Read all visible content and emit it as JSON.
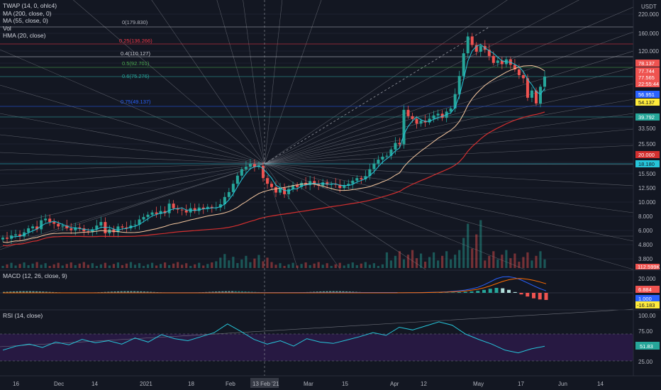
{
  "legend": {
    "items": [
      "TWAP (14, 0, ohlc4)",
      "MA (200, close, 0)",
      "MA (55, close, 0)",
      "Vol",
      "HMA (20, close)"
    ],
    "macd_title": "MACD (12, 26, close, 9)",
    "rsi_title": "RSI (14, close)"
  },
  "price_axis": {
    "unit": "USDT",
    "ticks": [
      "220.000",
      "160.000",
      "120.000",
      "78.137",
      "77.744",
      "77.565",
      "22:55:44",
      "56.951",
      "54.137",
      "39.792",
      "33.500",
      "25.500",
      "20.000",
      "18.180",
      "15.500",
      "12.500",
      "10.000",
      "8.000",
      "6.000",
      "4.800",
      "3.800",
      "112.599K"
    ]
  },
  "fib_levels": [
    {
      "label": "0(179.830)",
      "color": "#b2b5be"
    },
    {
      "label": "0.25(136.266)",
      "color": "#f23645"
    },
    {
      "label": "0.4(110.127)",
      "color": "#d1d4dc"
    },
    {
      "label": "0.5(92.701)",
      "color": "#4caf50"
    },
    {
      "label": "0.6(75.276)",
      "color": "#26a69a"
    },
    {
      "label": "0.75(49.137)",
      "color": "#2962ff"
    }
  ],
  "macd_axis": {
    "ticks": [
      "20.000",
      "6.884",
      "1.000",
      "-16.183"
    ]
  },
  "rsi_axis": {
    "ticks": [
      "100.00",
      "75.00",
      "51.83",
      "25.00"
    ]
  },
  "time_axis": {
    "ticks": [
      "16",
      "Dec",
      "14",
      "2021",
      "18",
      "Feb",
      "13 Feb '21",
      "Mar",
      "15",
      "Apr",
      "12",
      "May",
      "17",
      "Jun",
      "14"
    ]
  },
  "colors": {
    "up": "#26a69a",
    "down": "#ef5350",
    "ma200": "#d32f2f",
    "ma55": "#f7c9a1",
    "hma": "#26c6da",
    "twap": "#1e88e5",
    "macd": "#2962ff",
    "signal": "#ff6d00",
    "rsi": "#26c6da"
  },
  "chart_data": [
    {
      "type": "candlestick",
      "title": "",
      "scale": "log",
      "x_ticks": [
        "16",
        "Dec",
        "14",
        "2021",
        "18",
        "Feb",
        "13 Feb '21",
        "Mar",
        "15",
        "Apr",
        "12",
        "May",
        "17",
        "Jun",
        "14"
      ],
      "ylim": [
        3.5,
        260
      ],
      "close": [
        5.4,
        5.3,
        5.6,
        5.7,
        5.5,
        5.9,
        6.3,
        6.5,
        6.2,
        7.2,
        7.4,
        7.0,
        6.8,
        6.5,
        6.6,
        6.3,
        6.1,
        6.4,
        6.3,
        6.0,
        5.9,
        6.2,
        6.6,
        7.0,
        5.8,
        6.2,
        5.9,
        6.5,
        6.4,
        6.3,
        6.6,
        6.7,
        7.3,
        7.6,
        7.9,
        8.2,
        8.0,
        8.4,
        8.1,
        9.5,
        8.8,
        8.6,
        8.5,
        8.2,
        8.8,
        8.4,
        8.9,
        8.7,
        9.0,
        8.8,
        8.9,
        9.4,
        10.6,
        11.5,
        13.2,
        15.1,
        16.8,
        17.5,
        18.3,
        17.4,
        17.8,
        14.5,
        13.2,
        12.5,
        11.4,
        12.3,
        11.1,
        12.1,
        12.9,
        12.5,
        13.4,
        12.9,
        13.8,
        13.1,
        12.8,
        13.5,
        13.0,
        13.2,
        13.0,
        12.3,
        12.8,
        13.2,
        13.9,
        14.5,
        14.2,
        15.0,
        16.8,
        18.5,
        19.7,
        20.7,
        21.0,
        23.3,
        26.0,
        25.4,
        45.0,
        40.5,
        38.7,
        35.8,
        37.6,
        36.5,
        38.9,
        41.0,
        42.2,
        39.4,
        43.7,
        46.1,
        58.4,
        78.9,
        115.0,
        152.0,
        132.0,
        118.0,
        130.0,
        122.0,
        110.0,
        98.0,
        102.0,
        96.0,
        104.0,
        95.0,
        88.0,
        80.0,
        76.0,
        55.0,
        62.0,
        50.0,
        66.0,
        78.1
      ],
      "volume_note": "volume bars shown at bottom of price pane"
    },
    {
      "type": "line",
      "title": "MACD (12, 26, close, 9)",
      "series": [
        {
          "name": "MACD",
          "values": [
            0.1,
            0.2,
            0.2,
            0.3,
            0.4,
            0.6,
            0.8,
            1.0,
            1.3,
            1.8,
            2.5,
            3.5,
            4.9,
            6.8,
            9.8,
            13.6,
            17.4,
            19.6,
            19.8,
            18.4,
            15.7,
            12.3,
            8.6,
            5.2,
            2.4
          ]
        },
        {
          "name": "Signal",
          "values": [
            0.1,
            0.1,
            0.2,
            0.2,
            0.3,
            0.4,
            0.6,
            0.8,
            1.0,
            1.3,
            1.7,
            2.3,
            3.2,
            4.4,
            6.2,
            8.6,
            11.3,
            14.0,
            16.1,
            17.4,
            17.6,
            16.8,
            15.3,
            13.3,
            11.1
          ]
        }
      ],
      "ylim": [
        -20,
        25
      ]
    },
    {
      "type": "line",
      "title": "RSI (14, close)",
      "series": [
        {
          "name": "RSI",
          "values": [
            46,
            52,
            55,
            50,
            58,
            54,
            62,
            57,
            60,
            55,
            64,
            58,
            69,
            63,
            60,
            66,
            72,
            85,
            74,
            62,
            55,
            60,
            52,
            63,
            58,
            56,
            61,
            66,
            72,
            68,
            80,
            76,
            82,
            88,
            83,
            70,
            62,
            55,
            46,
            42,
            48,
            51.83
          ]
        }
      ],
      "ylim": [
        15,
        100
      ],
      "bands": [
        30,
        70
      ]
    }
  ]
}
